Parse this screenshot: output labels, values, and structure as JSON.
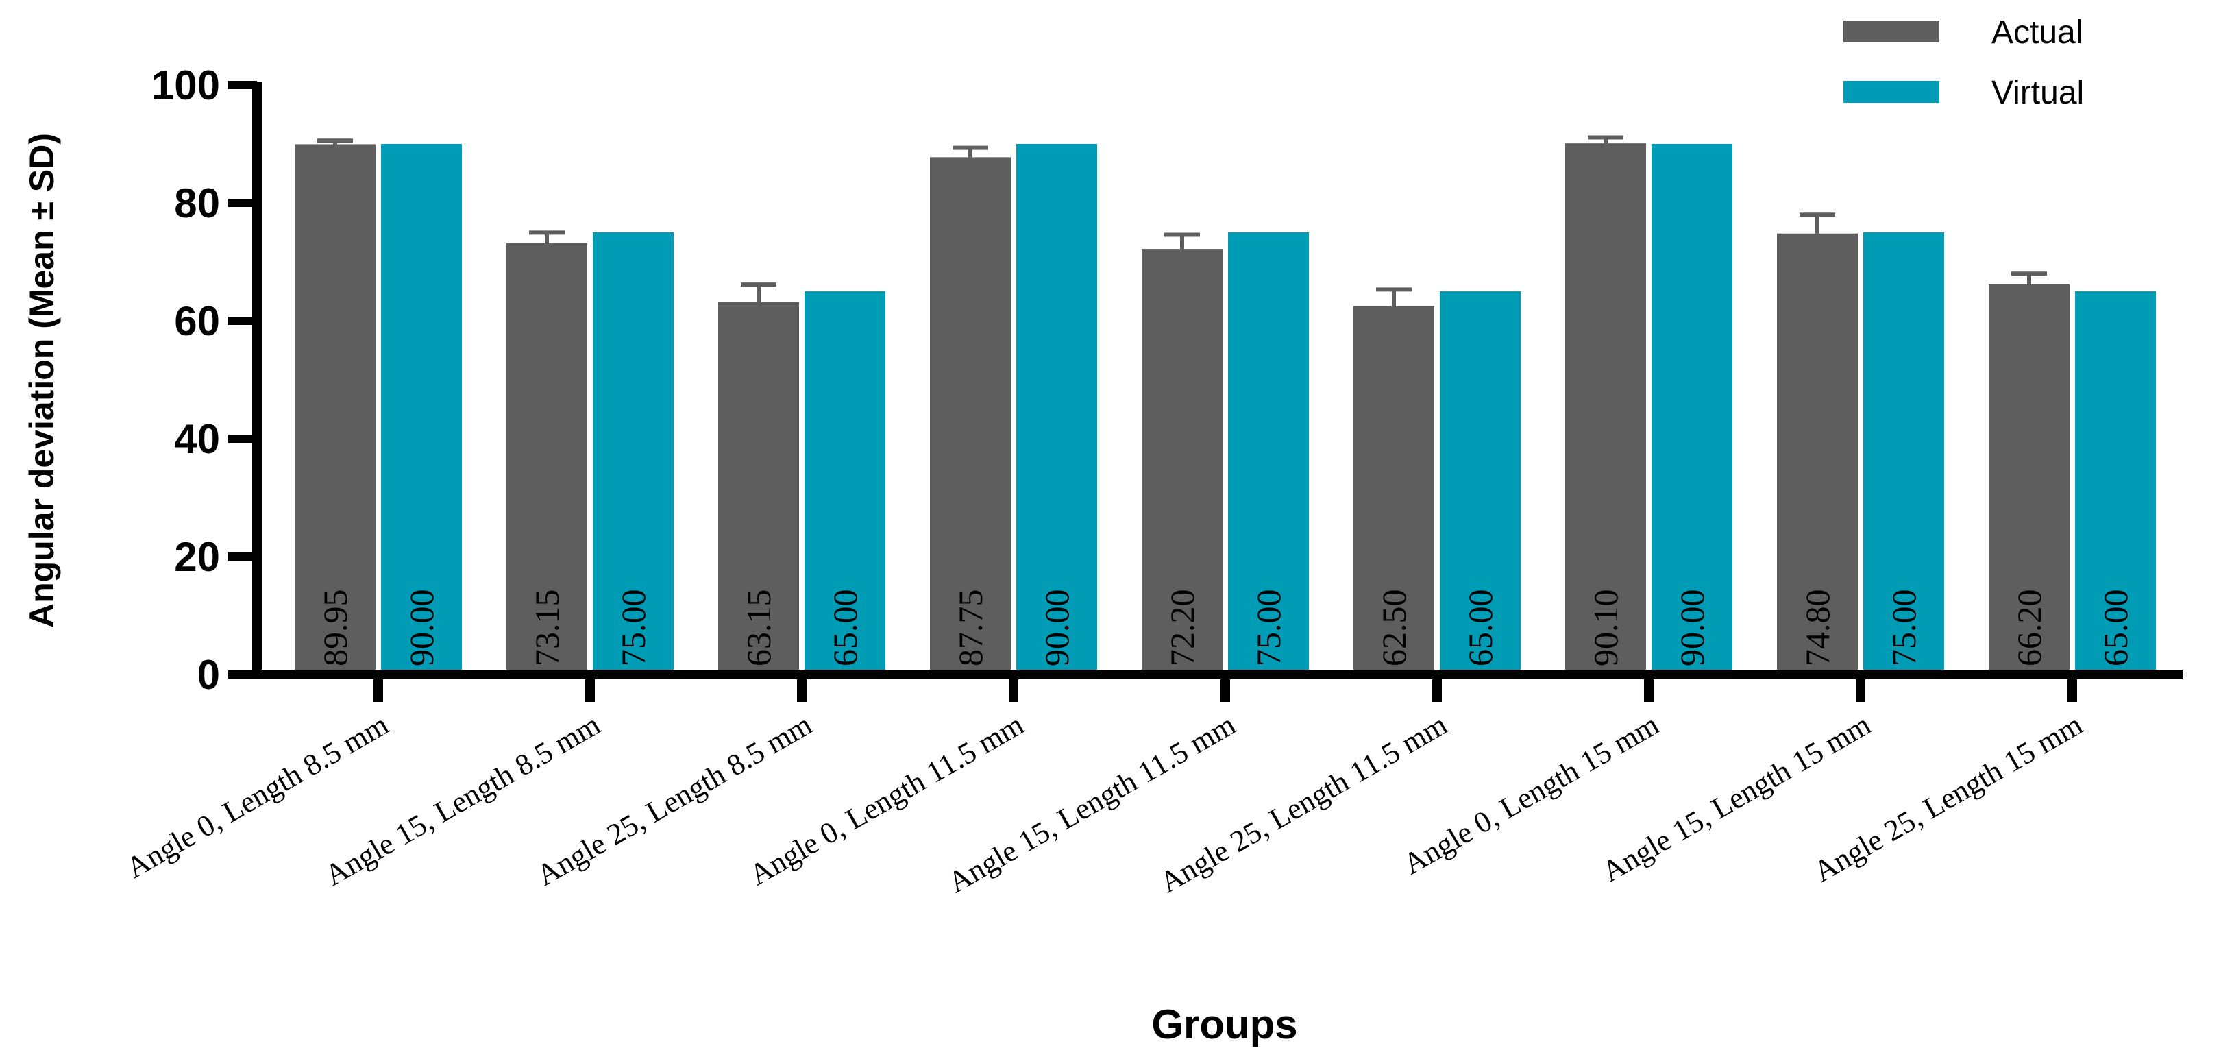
{
  "chart_data": {
    "type": "bar",
    "xlabel": "Groups",
    "ylabel": "Angular deviation (Mean ± SD)",
    "ylim": [
      0,
      100
    ],
    "yticks": [
      0,
      20,
      40,
      60,
      80,
      100
    ],
    "grid": false,
    "legend_position": "top-right",
    "categories": [
      "Angle 0, Length 8.5 mm",
      "Angle 15, Length 8.5 mm",
      "Angle 25, Length 8.5 mm",
      "Angle 0, Length 11.5 mm",
      "Angle 15, Length 11.5 mm",
      "Angle 25, Length 11.5 mm",
      "Angle 0, Length 15 mm",
      "Angle 15, Length 15 mm",
      "Angle 25, Length 15 mm"
    ],
    "series": [
      {
        "name": "Actual",
        "color": "#5e5e5e",
        "values": [
          89.95,
          73.15,
          63.15,
          87.75,
          72.2,
          62.5,
          90.1,
          74.8,
          66.2
        ],
        "labels": [
          "89.95",
          "73.15",
          "63.15",
          "87.75",
          "72.20",
          "62.50",
          "90.10",
          "74.80",
          "66.20"
        ],
        "sd": [
          0.6,
          1.8,
          3.0,
          1.6,
          2.4,
          2.8,
          1.0,
          3.2,
          1.8
        ]
      },
      {
        "name": "Virtual",
        "color": "#009bb5",
        "values": [
          90.0,
          75.0,
          65.0,
          90.0,
          75.0,
          65.0,
          90.0,
          75.0,
          65.0
        ],
        "labels": [
          "90.00",
          "75.00",
          "65.00",
          "90.00",
          "75.00",
          "65.00",
          "90.00",
          "75.00",
          "65.00"
        ]
      }
    ]
  }
}
